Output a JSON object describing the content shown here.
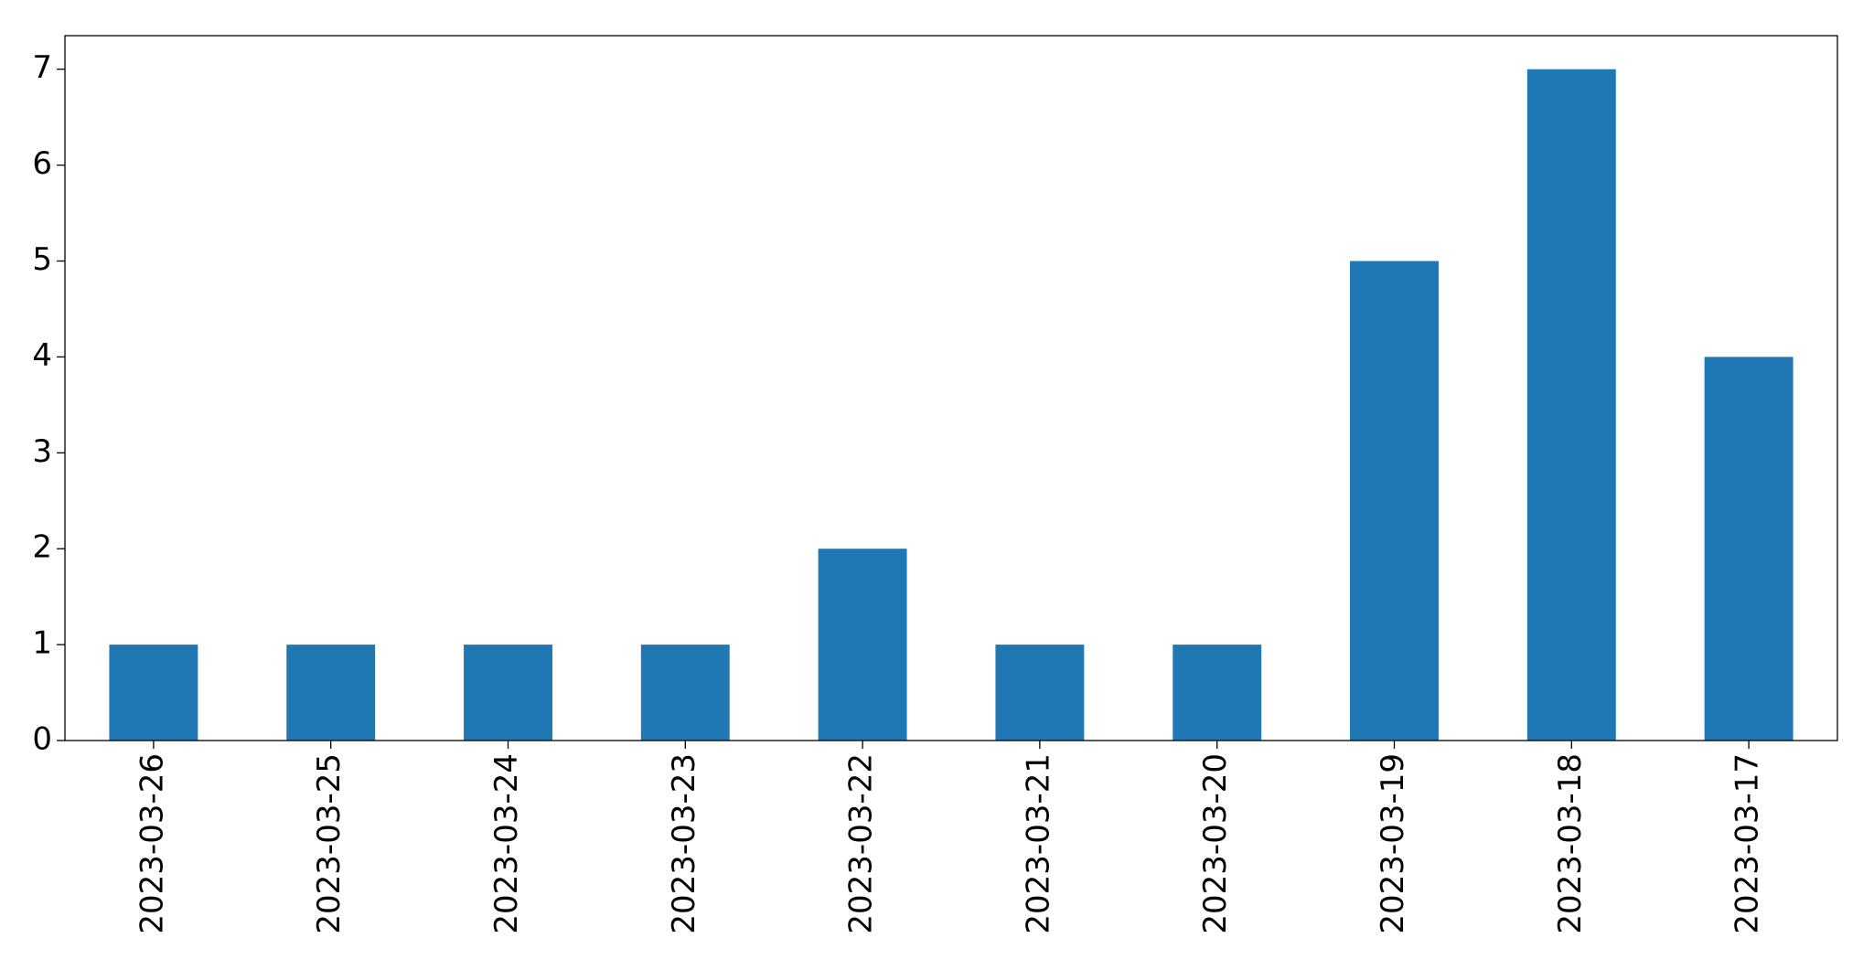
{
  "chart_data": {
    "type": "bar",
    "categories": [
      "2023-03-26",
      "2023-03-25",
      "2023-03-24",
      "2023-03-23",
      "2023-03-22",
      "2023-03-21",
      "2023-03-20",
      "2023-03-19",
      "2023-03-18",
      "2023-03-17"
    ],
    "values": [
      1,
      1,
      1,
      1,
      2,
      1,
      1,
      5,
      7,
      4
    ],
    "color": "#1f77b4",
    "ylim": [
      0,
      7.35
    ],
    "yticks": [
      0,
      1,
      2,
      3,
      4,
      5,
      6,
      7
    ],
    "grid": false
  }
}
